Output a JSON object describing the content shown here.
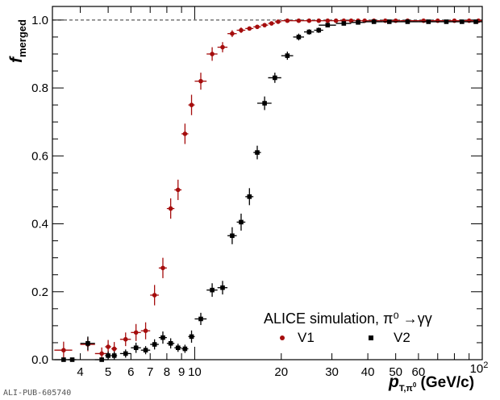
{
  "chart_data": {
    "type": "scatter",
    "title": "",
    "x_scale": "log",
    "xlim": [
      3.2,
      100
    ],
    "ylim": [
      0,
      1.04
    ],
    "reference_line_y": 1.0,
    "grid": false,
    "legend_placement": "bottom-right",
    "x_ticks": [
      {
        "value": 4,
        "label": "4"
      },
      {
        "value": 5,
        "label": "5"
      },
      {
        "value": 6,
        "label": "6"
      },
      {
        "value": 7,
        "label": "7"
      },
      {
        "value": 8,
        "label": "8"
      },
      {
        "value": 9,
        "label": "9"
      },
      {
        "value": 10,
        "label": "10"
      },
      {
        "value": 20,
        "label": "20"
      },
      {
        "value": 30,
        "label": "30"
      },
      {
        "value": 40,
        "label": "40"
      },
      {
        "value": 50,
        "label": "50"
      },
      {
        "value": 60,
        "label": "60"
      }
    ],
    "x_tick_100_base": "10",
    "x_tick_100_exp": "2",
    "y_ticks": [
      {
        "value": 0.0,
        "label": "0.0"
      },
      {
        "value": 0.2,
        "label": "0.2"
      },
      {
        "value": 0.4,
        "label": "0.4"
      },
      {
        "value": 0.6,
        "label": "0.6"
      },
      {
        "value": 0.8,
        "label": "0.8"
      },
      {
        "value": 1.0,
        "label": "1.0"
      }
    ],
    "xlabel": {
      "main": "p",
      "sub": "T,π",
      "sub_sup": "0",
      "unit": " (GeV/c)"
    },
    "ylabel": {
      "main": "f",
      "sub": "merged"
    },
    "annotation": "ALICE simulation, π⁰ →γγ",
    "series": [
      {
        "name": "V1",
        "color": "#a50d0d",
        "marker": "circle",
        "x": [
          3.5,
          4.25,
          4.75,
          5.0,
          5.25,
          5.75,
          6.25,
          6.75,
          7.25,
          7.75,
          8.25,
          8.75,
          9.25,
          9.75,
          10.5,
          11.5,
          12.5,
          13.5,
          14.5,
          15.5,
          16.5,
          17.5,
          18.5,
          19.5,
          21,
          23,
          25,
          27,
          29,
          31,
          33,
          35,
          37,
          39,
          42,
          46,
          50,
          55,
          62.5,
          70,
          80,
          90,
          97
        ],
        "y": [
          0.028,
          0.045,
          0.018,
          0.038,
          0.032,
          0.06,
          0.08,
          0.085,
          0.19,
          0.27,
          0.445,
          0.5,
          0.665,
          0.75,
          0.82,
          0.9,
          0.92,
          0.96,
          0.97,
          0.975,
          0.98,
          0.985,
          0.99,
          0.995,
          0.998,
          0.998,
          0.998,
          0.998,
          0.998,
          0.998,
          0.998,
          0.998,
          0.998,
          0.998,
          0.998,
          0.998,
          0.998,
          0.998,
          0.998,
          0.998,
          0.998,
          0.998,
          0.998
        ],
        "xerr": [
          0.25,
          0.25,
          0.25,
          0.12,
          0.12,
          0.25,
          0.25,
          0.25,
          0.25,
          0.25,
          0.25,
          0.25,
          0.25,
          0.25,
          0.5,
          0.5,
          0.5,
          0.5,
          0.5,
          0.5,
          0.5,
          0.5,
          0.5,
          0.5,
          1,
          1,
          1,
          1,
          1,
          1,
          1,
          1,
          1,
          1,
          2,
          2,
          2,
          3,
          5,
          5,
          5,
          5,
          3
        ],
        "yerr": [
          0.025,
          0.02,
          0.018,
          0.02,
          0.02,
          0.02,
          0.025,
          0.025,
          0.03,
          0.03,
          0.03,
          0.03,
          0.03,
          0.03,
          0.025,
          0.02,
          0.015,
          0.01,
          0.008,
          0.006,
          0.005,
          0.004,
          0.003,
          0.003,
          0.002,
          0.002,
          0.002,
          0.002,
          0.002,
          0.002,
          0.002,
          0.002,
          0.002,
          0.002,
          0.002,
          0.002,
          0.002,
          0.002,
          0.002,
          0.002,
          0.002,
          0.002,
          0.002
        ]
      },
      {
        "name": "V2",
        "color": "#000000",
        "marker": "square",
        "x": [
          3.5,
          3.75,
          4.25,
          4.75,
          5.0,
          5.25,
          5.75,
          6.25,
          6.75,
          7.25,
          7.75,
          8.25,
          8.75,
          9.25,
          9.75,
          10.5,
          11.5,
          12.5,
          13.5,
          14.5,
          15.5,
          16.5,
          17.5,
          19,
          21,
          23,
          25,
          27,
          29,
          33,
          37,
          42,
          47.5,
          55,
          65,
          75,
          85,
          95
        ],
        "y": [
          0.0,
          0.0,
          0.048,
          0.0,
          0.012,
          0.012,
          0.018,
          0.035,
          0.028,
          0.045,
          0.065,
          0.048,
          0.035,
          0.032,
          0.068,
          0.12,
          0.205,
          0.212,
          0.365,
          0.405,
          0.48,
          0.61,
          0.755,
          0.83,
          0.895,
          0.95,
          0.965,
          0.97,
          0.985,
          0.99,
          0.993,
          0.995,
          0.995,
          0.995,
          0.995,
          0.995,
          0.995,
          0.995
        ],
        "xerr": [
          0.25,
          0.12,
          0.25,
          0.25,
          0.12,
          0.12,
          0.25,
          0.25,
          0.25,
          0.25,
          0.25,
          0.25,
          0.25,
          0.25,
          0.25,
          0.5,
          0.5,
          0.5,
          0.5,
          0.5,
          0.5,
          0.5,
          1,
          1,
          1,
          1,
          1,
          1,
          2,
          2,
          2,
          3,
          2.5,
          5,
          5,
          5,
          5,
          5
        ],
        "yerr": [
          0.005,
          0.005,
          0.02,
          0.005,
          0.012,
          0.012,
          0.012,
          0.015,
          0.012,
          0.015,
          0.018,
          0.015,
          0.012,
          0.012,
          0.018,
          0.018,
          0.02,
          0.02,
          0.025,
          0.025,
          0.025,
          0.02,
          0.02,
          0.015,
          0.012,
          0.01,
          0.008,
          0.008,
          0.006,
          0.005,
          0.004,
          0.003,
          0.003,
          0.003,
          0.003,
          0.003,
          0.003,
          0.003
        ]
      }
    ]
  },
  "watermark": "ALI-PUB-605740"
}
